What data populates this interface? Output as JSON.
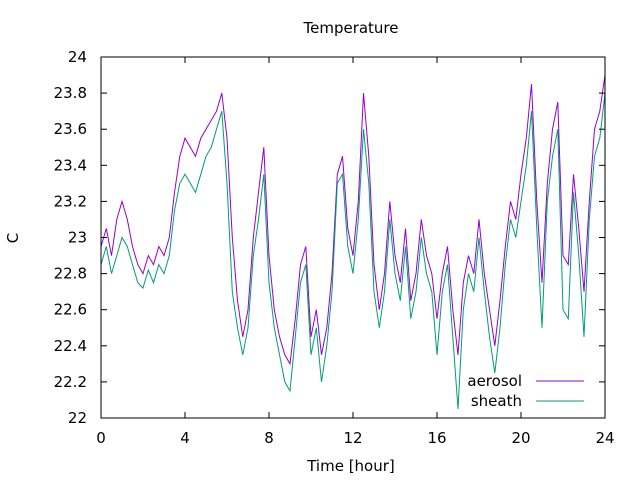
{
  "chart_data": {
    "type": "line",
    "title": "Temperature",
    "xlabel": "Time [hour]",
    "ylabel": "C",
    "xlim": [
      0,
      24
    ],
    "ylim": [
      22,
      24
    ],
    "xticks": [
      0,
      4,
      8,
      12,
      16,
      20,
      24
    ],
    "yticks": [
      22,
      22.2,
      22.4,
      22.6,
      22.8,
      23,
      23.2,
      23.4,
      23.6,
      23.8,
      24
    ],
    "grid": false,
    "legend_position": "bottom-right",
    "series": [
      {
        "name": "aerosol",
        "color": "#9400d3",
        "x": [
          0,
          0.25,
          0.5,
          0.75,
          1,
          1.25,
          1.5,
          1.75,
          2,
          2.25,
          2.5,
          2.75,
          3,
          3.25,
          3.5,
          3.75,
          4,
          4.25,
          4.5,
          4.75,
          5,
          5.25,
          5.5,
          5.75,
          6,
          6.25,
          6.5,
          6.75,
          7,
          7.25,
          7.5,
          7.75,
          8,
          8.25,
          8.5,
          8.75,
          9,
          9.25,
          9.5,
          9.75,
          10,
          10.25,
          10.5,
          10.75,
          11,
          11.25,
          11.5,
          11.75,
          12,
          12.25,
          12.5,
          12.75,
          13,
          13.25,
          13.5,
          13.75,
          14,
          14.25,
          14.5,
          14.75,
          15,
          15.25,
          15.5,
          15.75,
          16,
          16.25,
          16.5,
          16.75,
          17,
          17.25,
          17.5,
          17.75,
          18,
          18.25,
          18.5,
          18.75,
          19,
          19.25,
          19.5,
          19.75,
          20,
          20.25,
          20.5,
          20.75,
          21,
          21.25,
          21.5,
          21.75,
          22,
          22.25,
          22.5,
          22.75,
          23,
          23.25,
          23.5,
          23.75,
          24
        ],
        "y": [
          22.95,
          23.05,
          22.9,
          23.1,
          23.2,
          23.1,
          22.95,
          22.85,
          22.8,
          22.9,
          22.85,
          22.95,
          22.9,
          23.0,
          23.25,
          23.45,
          23.55,
          23.5,
          23.45,
          23.55,
          23.6,
          23.65,
          23.7,
          23.8,
          23.55,
          23.0,
          22.65,
          22.45,
          22.6,
          23.0,
          23.25,
          23.5,
          22.9,
          22.6,
          22.45,
          22.35,
          22.3,
          22.55,
          22.85,
          22.95,
          22.45,
          22.6,
          22.35,
          22.5,
          22.8,
          23.35,
          23.45,
          23.05,
          22.9,
          23.2,
          23.8,
          23.45,
          22.85,
          22.6,
          22.8,
          23.2,
          22.9,
          22.75,
          23.05,
          22.65,
          22.8,
          23.1,
          22.9,
          22.8,
          22.55,
          22.8,
          22.95,
          22.6,
          22.35,
          22.75,
          22.9,
          22.8,
          23.1,
          22.8,
          22.6,
          22.4,
          22.65,
          22.95,
          23.2,
          23.1,
          23.35,
          23.55,
          23.85,
          23.2,
          22.75,
          23.3,
          23.6,
          23.75,
          22.9,
          22.85,
          23.35,
          23.05,
          22.7,
          23.2,
          23.6,
          23.7,
          23.9
        ],
        "values": null
      },
      {
        "name": "sheath",
        "color": "#009e73",
        "x": [
          0,
          0.25,
          0.5,
          0.75,
          1,
          1.25,
          1.5,
          1.75,
          2,
          2.25,
          2.5,
          2.75,
          3,
          3.25,
          3.5,
          3.75,
          4,
          4.25,
          4.5,
          4.75,
          5,
          5.25,
          5.5,
          5.75,
          6,
          6.25,
          6.5,
          6.75,
          7,
          7.25,
          7.5,
          7.75,
          8,
          8.25,
          8.5,
          8.75,
          9,
          9.25,
          9.5,
          9.75,
          10,
          10.25,
          10.5,
          10.75,
          11,
          11.25,
          11.5,
          11.75,
          12,
          12.25,
          12.5,
          12.75,
          13,
          13.25,
          13.5,
          13.75,
          14,
          14.25,
          14.5,
          14.75,
          15,
          15.25,
          15.5,
          15.75,
          16,
          16.25,
          16.5,
          16.75,
          17,
          17.25,
          17.5,
          17.75,
          18,
          18.25,
          18.5,
          18.75,
          19,
          19.25,
          19.5,
          19.75,
          20,
          20.25,
          20.5,
          20.75,
          21,
          21.25,
          21.5,
          21.75,
          22,
          22.25,
          22.5,
          22.75,
          23,
          23.25,
          23.5,
          23.75,
          24
        ],
        "y": [
          22.85,
          22.95,
          22.8,
          22.9,
          23.0,
          22.95,
          22.85,
          22.75,
          22.72,
          22.82,
          22.75,
          22.85,
          22.8,
          22.9,
          23.15,
          23.3,
          23.35,
          23.3,
          23.25,
          23.35,
          23.45,
          23.5,
          23.6,
          23.7,
          23.3,
          22.7,
          22.5,
          22.35,
          22.5,
          22.9,
          23.1,
          23.35,
          22.75,
          22.5,
          22.35,
          22.2,
          22.15,
          22.45,
          22.75,
          22.85,
          22.35,
          22.5,
          22.2,
          22.4,
          22.7,
          23.3,
          23.35,
          22.95,
          22.8,
          23.1,
          23.6,
          23.3,
          22.7,
          22.5,
          22.7,
          23.1,
          22.8,
          22.65,
          22.95,
          22.55,
          22.7,
          23.0,
          22.8,
          22.7,
          22.35,
          22.7,
          22.85,
          22.45,
          22.05,
          22.6,
          22.8,
          22.7,
          23.0,
          22.7,
          22.45,
          22.25,
          22.5,
          22.85,
          23.1,
          23.0,
          23.2,
          23.4,
          23.7,
          23.05,
          22.5,
          23.2,
          23.45,
          23.6,
          22.6,
          22.55,
          23.25,
          22.9,
          22.45,
          23.1,
          23.45,
          23.55,
          23.8
        ],
        "values": null
      }
    ]
  }
}
